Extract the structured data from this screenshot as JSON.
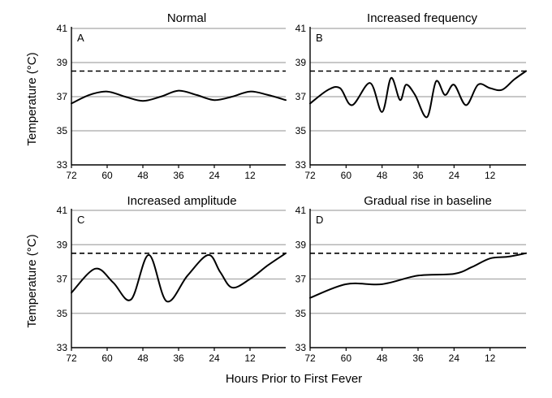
{
  "chart_data": [
    {
      "type": "line",
      "title": "Normal",
      "panel_label": "A",
      "ylabel": "Temperature (°C)",
      "xlabel": "",
      "x_reversed": true,
      "xlim": [
        72,
        0
      ],
      "ylim": [
        33,
        41
      ],
      "xticks": [
        72,
        60,
        48,
        36,
        24,
        12
      ],
      "yticks": [
        33,
        35,
        37,
        39,
        41
      ],
      "fever_threshold": 38.5,
      "series": [
        {
          "name": "Temperature",
          "x": [
            72,
            66,
            60,
            54,
            48,
            42,
            36,
            30,
            24,
            18,
            12,
            6,
            0
          ],
          "y": [
            36.6,
            37.1,
            37.3,
            37.0,
            36.75,
            37.0,
            37.35,
            37.1,
            36.8,
            37.0,
            37.3,
            37.1,
            36.8
          ]
        }
      ]
    },
    {
      "type": "line",
      "title": "Increased frequency",
      "panel_label": "B",
      "ylabel": "",
      "xlabel": "",
      "x_reversed": true,
      "xlim": [
        72,
        0
      ],
      "ylim": [
        33,
        41
      ],
      "xticks": [
        72,
        60,
        48,
        36,
        24,
        12
      ],
      "yticks": [
        33,
        35,
        37,
        39,
        41
      ],
      "fever_threshold": 38.5,
      "series": [
        {
          "name": "Temperature",
          "x": [
            72,
            66,
            62,
            58,
            52,
            48,
            45,
            42,
            40,
            37,
            33,
            30,
            27,
            24,
            20,
            16,
            12,
            8,
            4,
            0
          ],
          "y": [
            36.6,
            37.4,
            37.5,
            36.5,
            37.8,
            36.1,
            38.1,
            36.8,
            37.7,
            37.1,
            35.8,
            37.9,
            37.1,
            37.7,
            36.5,
            37.7,
            37.5,
            37.4,
            38.0,
            38.5
          ]
        }
      ]
    },
    {
      "type": "line",
      "title": "Increased amplitude",
      "panel_label": "C",
      "ylabel": "Temperature (°C)",
      "xlabel": "",
      "x_reversed": true,
      "xlim": [
        72,
        0
      ],
      "ylim": [
        33,
        41
      ],
      "xticks": [
        72,
        60,
        48,
        36,
        24,
        12
      ],
      "yticks": [
        33,
        35,
        37,
        39,
        41
      ],
      "fever_threshold": 38.5,
      "series": [
        {
          "name": "Temperature",
          "x": [
            72,
            64,
            58,
            52,
            46,
            40,
            33,
            26,
            22,
            18,
            12,
            6,
            0
          ],
          "y": [
            36.2,
            37.6,
            36.8,
            35.8,
            38.4,
            35.7,
            37.2,
            38.4,
            37.4,
            36.5,
            37.0,
            37.8,
            38.5
          ]
        }
      ]
    },
    {
      "type": "line",
      "title": "Gradual rise in baseline",
      "panel_label": "D",
      "ylabel": "",
      "xlabel": "Hours Prior to First Fever",
      "x_reversed": true,
      "xlim": [
        72,
        0
      ],
      "ylim": [
        33,
        41
      ],
      "xticks": [
        72,
        60,
        48,
        36,
        24,
        12
      ],
      "yticks": [
        33,
        35,
        37,
        39,
        41
      ],
      "fever_threshold": 38.5,
      "series": [
        {
          "name": "Temperature",
          "x": [
            72,
            60,
            48,
            36,
            24,
            18,
            12,
            6,
            0
          ],
          "y": [
            35.9,
            36.7,
            36.7,
            37.2,
            37.3,
            37.7,
            38.2,
            38.3,
            38.5
          ]
        }
      ]
    }
  ]
}
